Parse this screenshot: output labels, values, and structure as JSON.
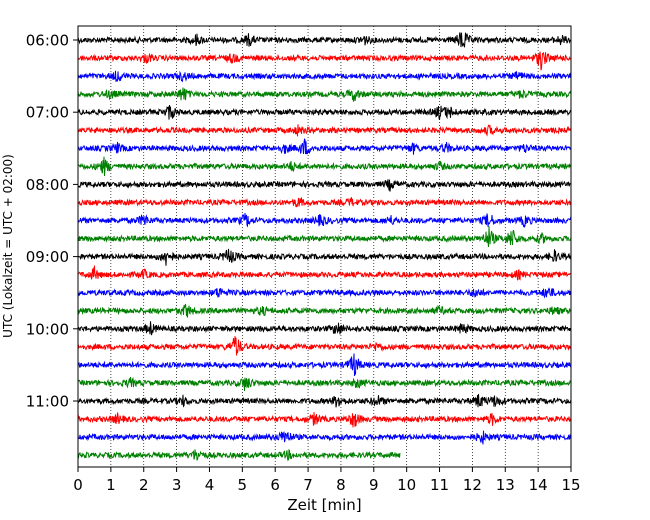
{
  "chart_data": {
    "type": "line",
    "title": "",
    "xlabel": "Zeit  [min]",
    "ylabel": "UTC (Lokalzeit = UTC + 02:00)",
    "xlim": [
      0,
      15
    ],
    "x_ticks": [
      0,
      1,
      2,
      3,
      4,
      5,
      6,
      7,
      8,
      9,
      10,
      11,
      12,
      13,
      14,
      15
    ],
    "y_tick_labels": [
      "06:00",
      "07:00",
      "08:00",
      "09:00",
      "10:00",
      "11:00"
    ],
    "y_tick_rows": [
      0,
      4,
      8,
      12,
      16,
      20
    ],
    "grid": "vertical dotted at each minute",
    "trace_interval_minutes": 15,
    "row_color_cycle": [
      "#000000",
      "#ff0000",
      "#0000ff",
      "#008000"
    ],
    "rows": [
      {
        "start": "06:00",
        "end_min": 15,
        "events": [
          [
            3.6,
            1.2
          ],
          [
            5.2,
            1.3
          ],
          [
            8.7,
            1.1
          ],
          [
            11.7,
            2.8
          ],
          [
            14.7,
            1.0
          ]
        ]
      },
      {
        "start": "06:15",
        "end_min": 15,
        "events": [
          [
            2.1,
            0.9
          ],
          [
            4.7,
            1.0
          ],
          [
            14.1,
            2.6
          ]
        ]
      },
      {
        "start": "06:30",
        "end_min": 15,
        "events": [
          [
            1.2,
            1.2
          ],
          [
            3.2,
            0.9
          ],
          [
            13.4,
            0.9
          ]
        ]
      },
      {
        "start": "06:45",
        "end_min": 15,
        "events": [
          [
            1.0,
            0.9
          ],
          [
            3.2,
            1.8
          ],
          [
            8.4,
            1.5
          ],
          [
            13.5,
            0.9
          ]
        ]
      },
      {
        "start": "07:00",
        "end_min": 15,
        "events": [
          [
            2.8,
            1.8
          ],
          [
            11.0,
            1.4
          ],
          [
            11.3,
            1.2
          ]
        ]
      },
      {
        "start": "07:15",
        "end_min": 15,
        "events": [
          [
            6.7,
            1.0
          ],
          [
            12.5,
            0.9
          ]
        ]
      },
      {
        "start": "07:30",
        "end_min": 15,
        "events": [
          [
            1.2,
            1.0
          ],
          [
            6.3,
            1.0
          ],
          [
            6.9,
            2.0
          ],
          [
            10.2,
            1.0
          ],
          [
            11.2,
            1.0
          ],
          [
            13.6,
            0.8
          ]
        ]
      },
      {
        "start": "07:45",
        "end_min": 15,
        "events": [
          [
            0.8,
            2.0
          ],
          [
            6.5,
            1.0
          ],
          [
            11.0,
            0.8
          ]
        ]
      },
      {
        "start": "08:00",
        "end_min": 15,
        "events": [
          [
            9.5,
            1.2
          ]
        ]
      },
      {
        "start": "08:15",
        "end_min": 15,
        "events": [
          [
            6.7,
            1.0
          ],
          [
            8.3,
            0.8
          ]
        ]
      },
      {
        "start": "08:30",
        "end_min": 15,
        "events": [
          [
            2.0,
            1.4
          ],
          [
            5.1,
            1.6
          ],
          [
            7.4,
            1.4
          ],
          [
            9.5,
            1.0
          ],
          [
            12.5,
            1.8
          ],
          [
            13.6,
            1.2
          ]
        ]
      },
      {
        "start": "08:45",
        "end_min": 15,
        "events": [
          [
            12.5,
            2.6
          ],
          [
            13.2,
            2.4
          ],
          [
            14.1,
            1.0
          ]
        ]
      },
      {
        "start": "09:00",
        "end_min": 15,
        "events": [
          [
            2.7,
            2.2
          ],
          [
            4.6,
            2.0
          ],
          [
            14.5,
            1.2
          ]
        ]
      },
      {
        "start": "09:15",
        "end_min": 15,
        "events": [
          [
            0.5,
            1.4
          ],
          [
            2.0,
            0.9
          ],
          [
            13.4,
            0.8
          ]
        ]
      },
      {
        "start": "09:30",
        "end_min": 15,
        "events": [
          [
            4.3,
            1.2
          ],
          [
            12.1,
            1.0
          ],
          [
            14.3,
            1.4
          ]
        ]
      },
      {
        "start": "09:45",
        "end_min": 15,
        "events": [
          [
            3.3,
            1.6
          ],
          [
            5.6,
            1.0
          ],
          [
            11.0,
            0.8
          ],
          [
            14.5,
            0.9
          ]
        ]
      },
      {
        "start": "10:00",
        "end_min": 15,
        "events": [
          [
            2.2,
            1.4
          ],
          [
            7.9,
            1.6
          ],
          [
            11.7,
            1.2
          ]
        ]
      },
      {
        "start": "10:15",
        "end_min": 15,
        "events": [
          [
            4.8,
            2.8
          ],
          [
            9.1,
            0.9
          ]
        ]
      },
      {
        "start": "10:30",
        "end_min": 15,
        "events": [
          [
            8.4,
            2.8
          ]
        ]
      },
      {
        "start": "10:45",
        "end_min": 15,
        "events": [
          [
            1.6,
            0.9
          ],
          [
            5.1,
            1.8
          ],
          [
            8.5,
            1.0
          ]
        ]
      },
      {
        "start": "11:00",
        "end_min": 15,
        "events": [
          [
            3.2,
            1.0
          ],
          [
            7.9,
            1.6
          ],
          [
            9.1,
            1.3
          ],
          [
            12.2,
            1.6
          ],
          [
            12.7,
            1.3
          ]
        ]
      },
      {
        "start": "11:15",
        "end_min": 15,
        "events": [
          [
            1.2,
            1.0
          ],
          [
            7.2,
            1.4
          ],
          [
            8.4,
            2.0
          ],
          [
            12.6,
            1.2
          ]
        ]
      },
      {
        "start": "11:30",
        "end_min": 15,
        "events": [
          [
            6.3,
            2.0
          ],
          [
            12.3,
            1.4
          ]
        ]
      },
      {
        "start": "11:45",
        "end_min": 9.8,
        "events": [
          [
            3.6,
            1.4
          ],
          [
            6.4,
            0.8
          ]
        ]
      }
    ]
  }
}
